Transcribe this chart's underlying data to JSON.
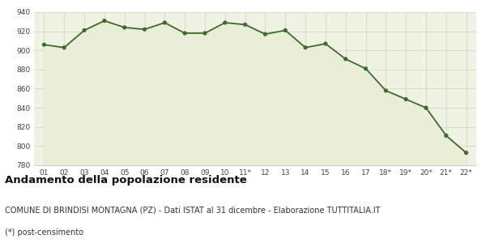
{
  "x_labels": [
    "01",
    "02",
    "03",
    "04",
    "05",
    "06",
    "07",
    "08",
    "09",
    "10",
    "11*",
    "12",
    "13",
    "14",
    "15",
    "16",
    "17",
    "18*",
    "19*",
    "20*",
    "21*",
    "22*"
  ],
  "y_values": [
    906,
    903,
    921,
    931,
    924,
    922,
    929,
    918,
    918,
    929,
    927,
    917,
    921,
    903,
    907,
    891,
    881,
    858,
    849,
    840,
    811,
    793
  ],
  "line_color": "#3a6e28",
  "fill_color": "#eaedd8",
  "marker_color": "#3a6e28",
  "bg_color": "#ffffff",
  "plot_bg_color": "#f0f2e3",
  "grid_color": "#d0d4b8",
  "ylim": [
    780,
    940
  ],
  "yticks": [
    780,
    800,
    820,
    840,
    860,
    880,
    900,
    920,
    940
  ],
  "title": "Andamento della popolazione residente",
  "subtitle": "COMUNE DI BRINDISI MONTAGNA (PZ) - Dati ISTAT al 31 dicembre - Elaborazione TUTTITALIA.IT",
  "footnote": "(*) post-censimento",
  "title_fontsize": 9.5,
  "subtitle_fontsize": 7,
  "footnote_fontsize": 7
}
